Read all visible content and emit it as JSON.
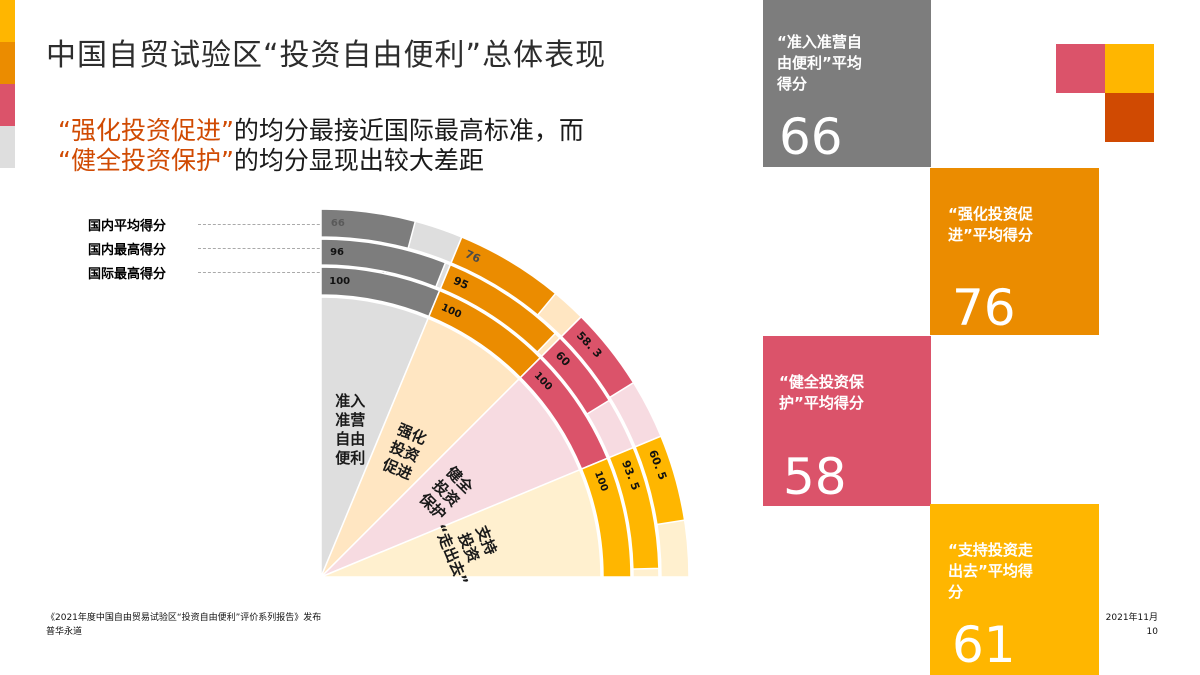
{
  "title": "中国自贸试验区“投资自由便利”总体表现",
  "subtitle": {
    "line1_highlight": "“强化投资促进”",
    "line1_rest": "的均分最接近国际最高标准，而",
    "line2_highlight": "“健全投资保护”",
    "line2_rest": "的均分显现出较大差距"
  },
  "legend": [
    {
      "label": "国内平均得分"
    },
    {
      "label": "国内最高得分"
    },
    {
      "label": "国际最高得分"
    }
  ],
  "colors": {
    "edge_bar": [
      "#ffb600",
      "#eb8c00",
      "#db536a",
      "#dedede"
    ],
    "logo": {
      "pink": "#db536a",
      "yellow": "#ffb600",
      "dark_orange": "#d04a02"
    },
    "accent": "#d04a02"
  },
  "chart_data": {
    "type": "radial_bar",
    "title": "中国自贸试验区“投资自由便利”总体表现",
    "rings": [
      "国际最高得分",
      "国内最高得分",
      "国内平均得分"
    ],
    "categories": [
      "准入准营自由便利",
      "强化投资促进",
      "健全投资保护",
      "支持投资“走出去”"
    ],
    "series": [
      {
        "name": "国内平均得分",
        "values": [
          66,
          76,
          58.3,
          60.5
        ]
      },
      {
        "name": "国内最高得分",
        "values": [
          96,
          95,
          60,
          93.5
        ]
      },
      {
        "name": "国际最高得分",
        "values": [
          100,
          100,
          100,
          100
        ]
      }
    ],
    "value_labels": [
      [
        "66",
        "96",
        "100"
      ],
      [
        "76",
        "95",
        "100"
      ],
      [
        "58. 3",
        "60",
        "100"
      ],
      [
        "60. 5",
        "93. 5",
        "100"
      ]
    ],
    "sector_labels": [
      [
        "准入",
        "准营",
        "自由",
        "便利"
      ],
      [
        "强化",
        "投资",
        "促进"
      ],
      [
        "健全",
        "投资",
        "保护"
      ],
      [
        "支持",
        "投资",
        "“走出去”"
      ]
    ],
    "sector_colors": {
      "bar": [
        "#7d7d7d",
        "#eb8c00",
        "#db536a",
        "#ffb600"
      ],
      "track": [
        "#dedede",
        "#ffe6c2",
        "#f7dbe1",
        "#fff0cf"
      ]
    },
    "ylim": [
      0,
      100
    ]
  },
  "tiles": [
    {
      "label": "“准入准营自由便利”平均得分",
      "label_lines": [
        "“准入准营自",
        "由便利”平均",
        "得分"
      ],
      "value": "66",
      "color": "#7d7d7d"
    },
    {
      "label": "“强化投资促进”平均得分",
      "label_lines": [
        "“强化投资促",
        "进”平均得分"
      ],
      "value": "76",
      "color": "#eb8c00"
    },
    {
      "label": "“健全投资保护”平均得分",
      "label_lines": [
        "“健全投资保",
        "护”平均得分"
      ],
      "value": "58",
      "color": "#db536a"
    },
    {
      "label": "“支持投资走出去”平均得分",
      "label_lines": [
        "“支持投资走",
        "出去”平均得",
        "分"
      ],
      "value": "61",
      "color": "#ffb600"
    }
  ],
  "footer": {
    "source": "《2021年度中国自由贸易试验区“投资自由便利”评价系列报告》发布",
    "org": "普华永道",
    "date": "2021年11月",
    "page": "10"
  }
}
